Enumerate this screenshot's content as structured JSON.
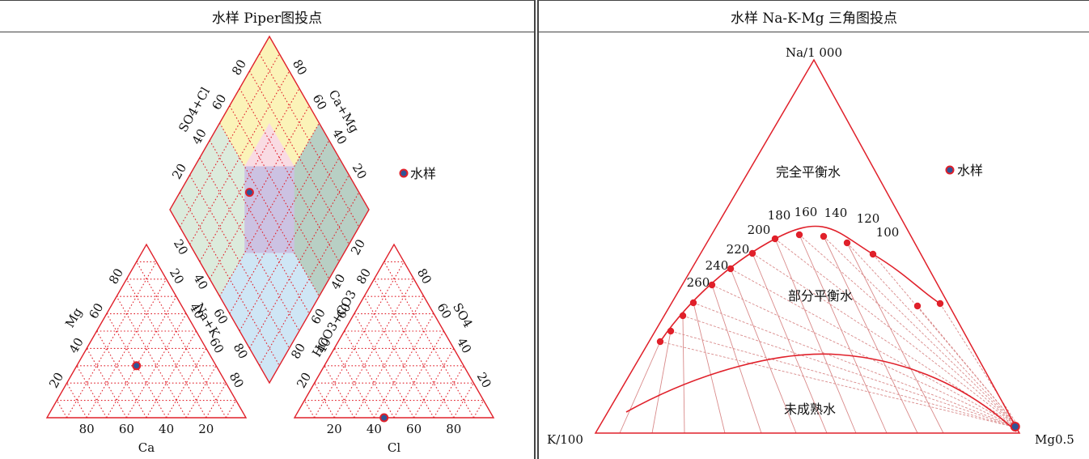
{
  "left_panel": {
    "title": "水样 Piper图投点",
    "legend_label": "水样",
    "cation": {
      "axis_mg": "Mg",
      "axis_nak": "Na+K",
      "axis_ca": "Ca",
      "mg_ticks": [
        "20",
        "40",
        "60",
        "80"
      ],
      "nak_ticks": [
        "20",
        "40",
        "60",
        "80"
      ],
      "ca_ticks": [
        "80",
        "60",
        "40",
        "20"
      ]
    },
    "anion": {
      "axis_hco3": "HCO3+CO3",
      "axis_so4": "SO4",
      "axis_cl": "Cl",
      "hco3_ticks": [
        "80",
        "60",
        "40",
        "20"
      ],
      "so4_ticks": [
        "80",
        "60",
        "40",
        "20"
      ],
      "cl_ticks": [
        "20",
        "40",
        "60",
        "80"
      ]
    },
    "diamond": {
      "axis_so4cl": "SO4+Cl",
      "axis_camg": "Ca+Mg",
      "top_left_ticks": [
        "20",
        "40",
        "60",
        "80"
      ],
      "top_right_ticks": [
        "80",
        "60",
        "40",
        "20"
      ],
      "bottom_left_ticks": [
        "20",
        "40",
        "60",
        "80"
      ],
      "bottom_right_ticks": [
        "20",
        "40",
        "60",
        "80"
      ]
    },
    "sample": {
      "ca_pct": 40,
      "mg_pct": 30,
      "nak_pct": 30,
      "cl_pct": 45,
      "so4_pct": 0,
      "hco3_pct": 55
    },
    "colors": {
      "grid": "#e0202a",
      "yellow": "#fbf3b8",
      "pink": "#f9dbe3",
      "green": "#dcebdc",
      "darkgreen": "#b8cfc4",
      "purple": "#ccc2e2",
      "blue": "#cfe6f5",
      "dot_fill": "#2f5597",
      "dot_ring": "#e0202a"
    }
  },
  "right_panel": {
    "title": "水样 Na-K-Mg 三角图投点",
    "legend_label": "水样",
    "vertex_top": "Na/1 000",
    "vertex_left": "K/100",
    "vertex_right": "Mg0.5",
    "region_full": "完全平衡水",
    "region_partial": "部分平衡水",
    "region_immature": "未成熟水",
    "temperature_labels": [
      "260",
      "240",
      "220",
      "200",
      "180",
      "160",
      "140",
      "120",
      "100"
    ],
    "sample": {
      "na_frac": 0.0,
      "k_frac": 0.01,
      "mg_frac": 0.99
    }
  }
}
